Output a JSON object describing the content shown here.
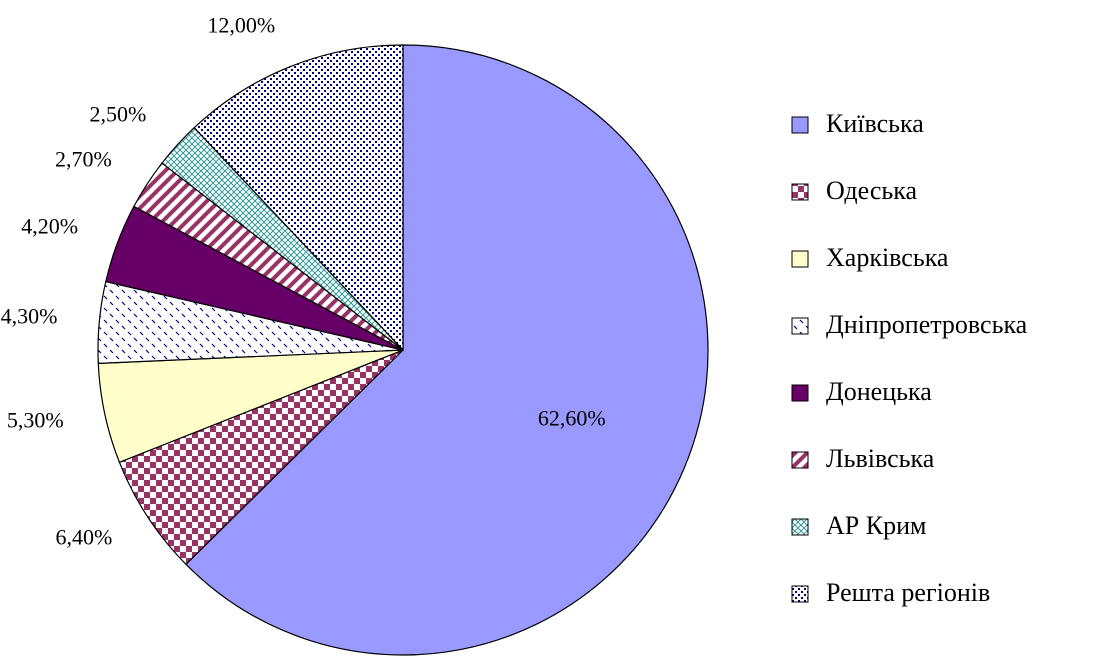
{
  "chart_data": {
    "type": "pie",
    "categories": [
      "Київська",
      "Одеська",
      "Харківська",
      "Дніпропетровська",
      "Донецька",
      "Львівська",
      "АР Крим",
      "Решта регіонів"
    ],
    "values": [
      62.6,
      6.4,
      5.3,
      4.3,
      4.2,
      2.7,
      2.5,
      12.0
    ],
    "value_labels": [
      "62,60%",
      "6,40%",
      "5,30%",
      "4,30%",
      "4,20%",
      "2,70%",
      "2,50%",
      "12,00%"
    ],
    "colors": [
      "#9999ff",
      "#993366",
      "#ffffcc",
      "#000080",
      "#660066",
      "#993366",
      "#339999",
      "#000080"
    ],
    "legend": "right"
  }
}
